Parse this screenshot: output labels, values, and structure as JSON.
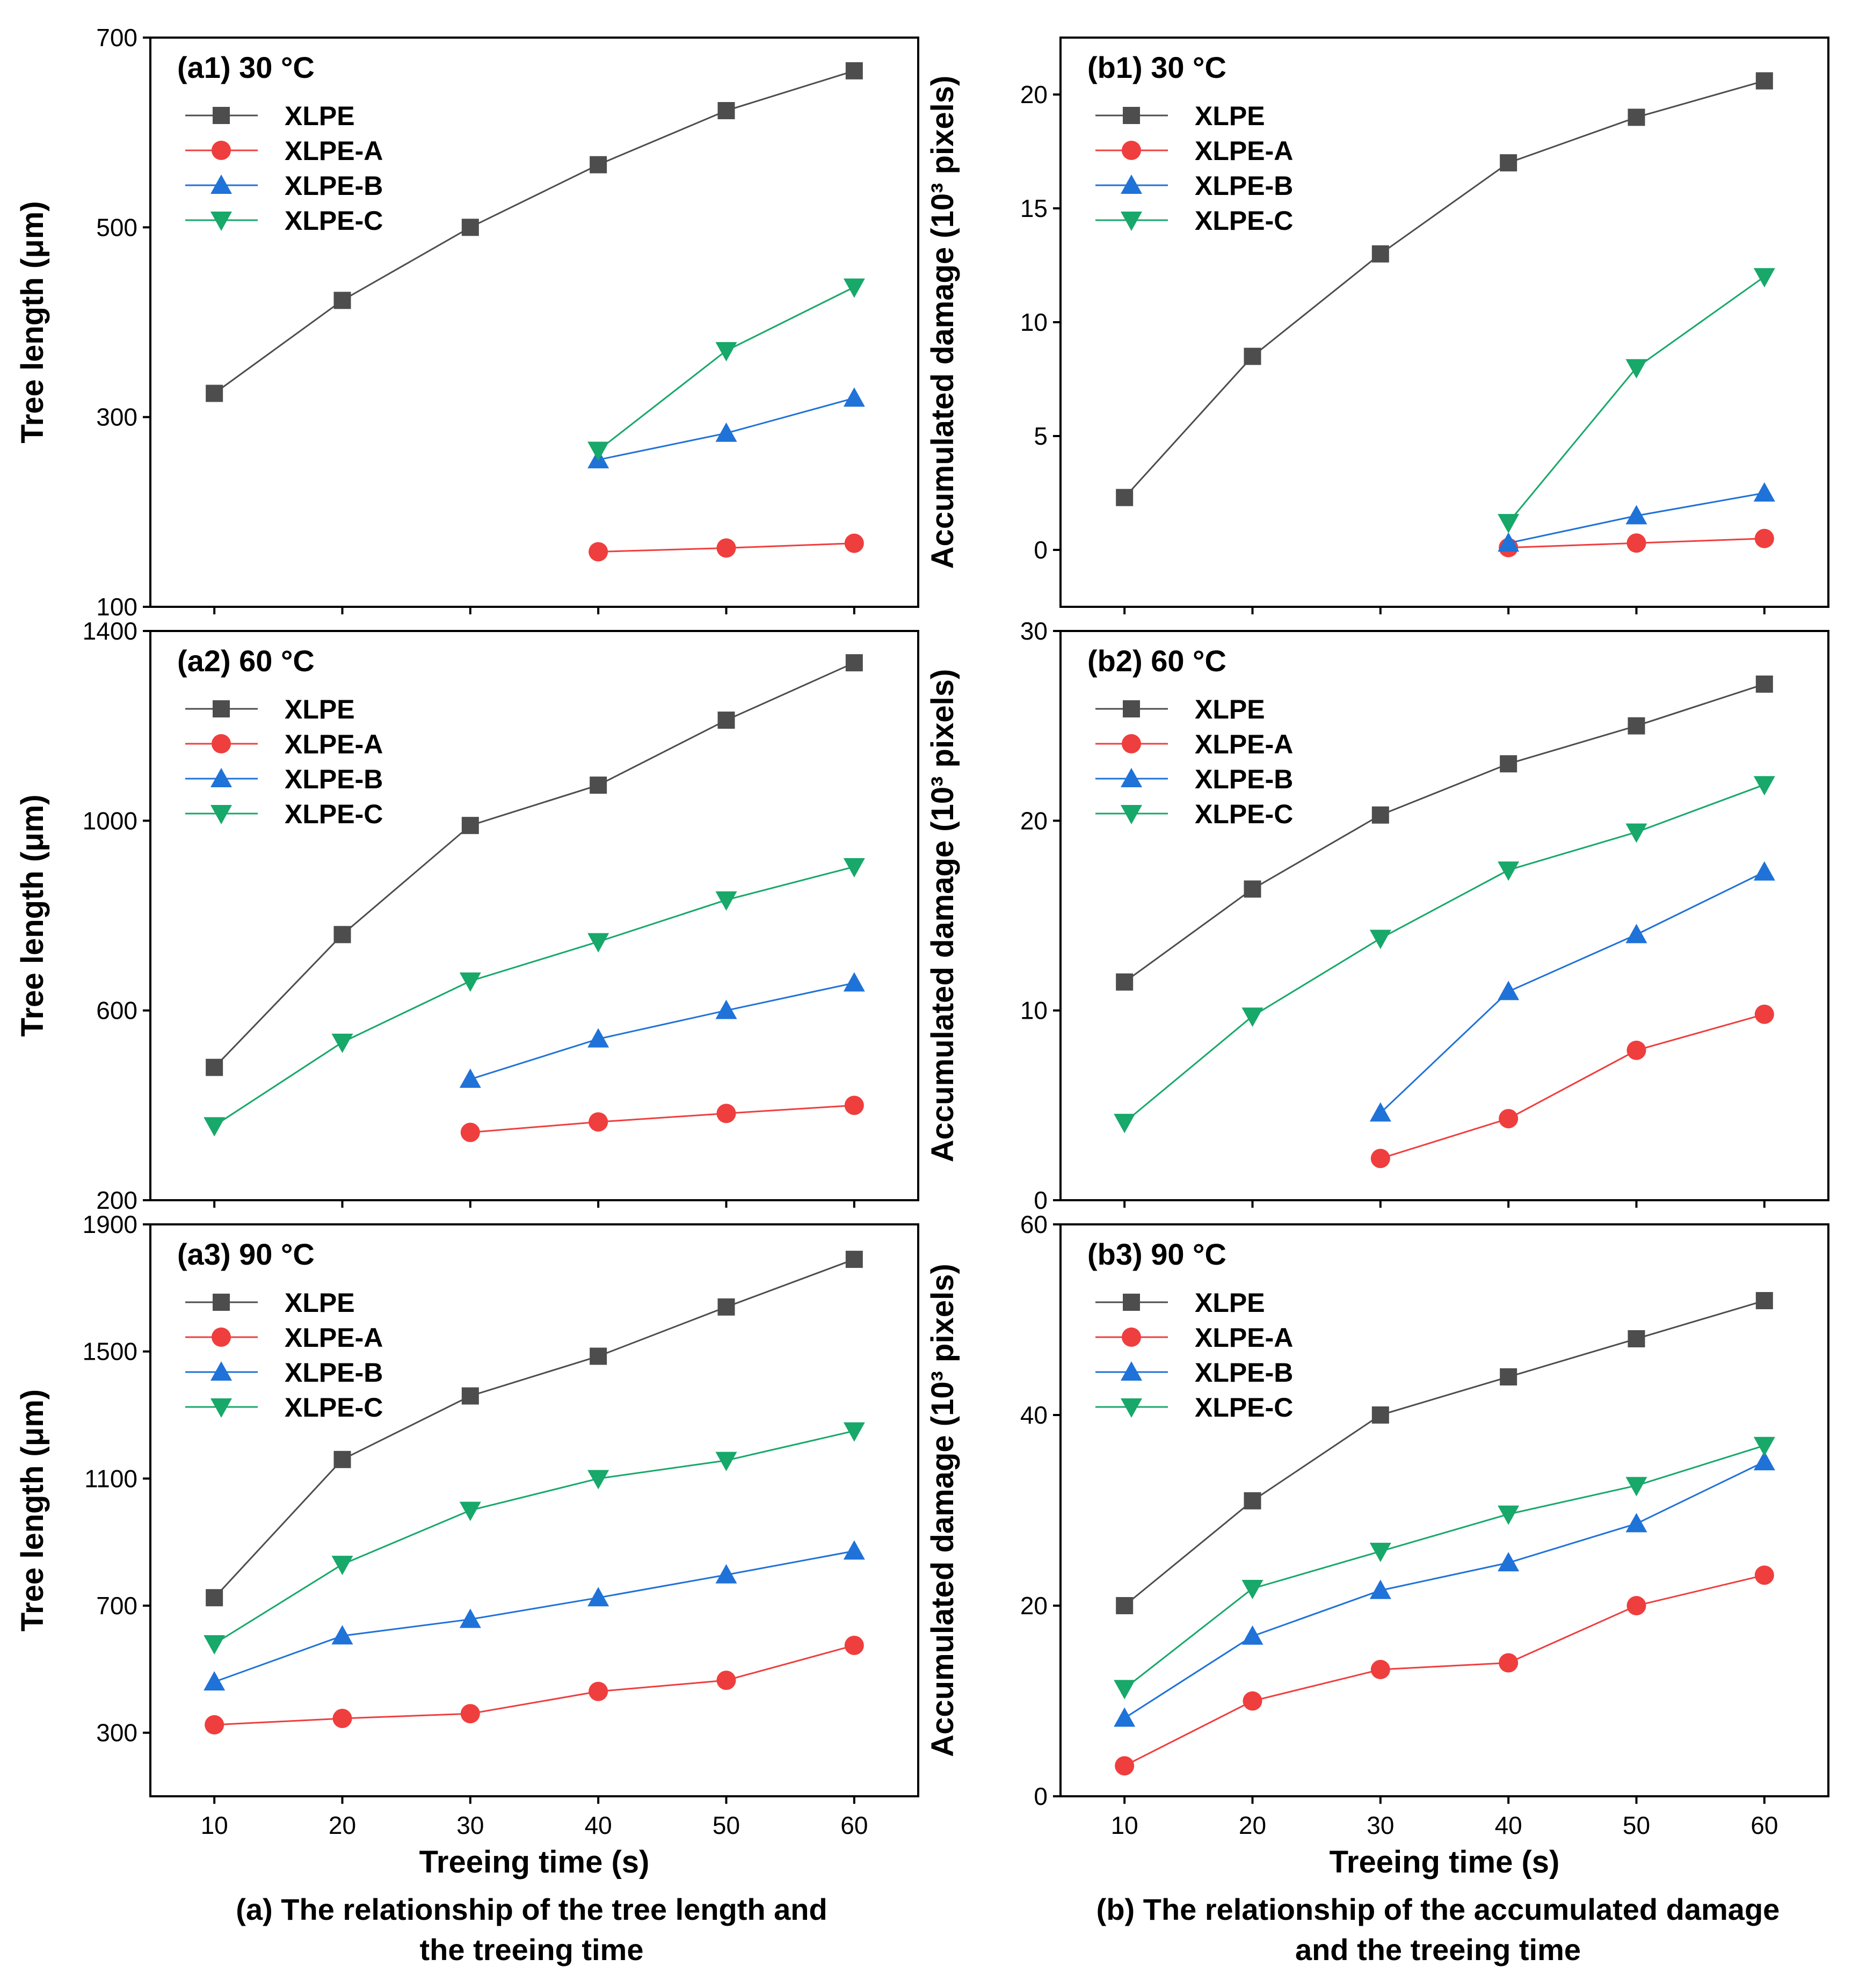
{
  "colors": {
    "XLPE": "#4d4d4d",
    "XLPE-A": "#ef3e3e",
    "XLPE-B": "#1f72d8",
    "XLPE-C": "#17a86a"
  },
  "chart_data": [
    {
      "id": "a1",
      "type": "line",
      "title": "(a1) 30 °C",
      "ylabel": "Tree length (μm)",
      "xlabel": "",
      "ylim": [
        100,
        700
      ],
      "yticks": [
        100,
        300,
        500,
        700
      ],
      "xlim": [
        5,
        65
      ],
      "xticks": [
        10,
        20,
        30,
        40,
        50,
        60
      ],
      "series": [
        {
          "name": "XLPE",
          "marker": "square",
          "x": [
            10,
            20,
            30,
            40,
            50,
            60
          ],
          "values": [
            325,
            423,
            500,
            566,
            623,
            665
          ]
        },
        {
          "name": "XLPE-A",
          "marker": "circle",
          "x": [
            40,
            50,
            60
          ],
          "values": [
            158,
            162,
            167
          ]
        },
        {
          "name": "XLPE-B",
          "marker": "triangle-up",
          "x": [
            40,
            50,
            60
          ],
          "values": [
            255,
            283,
            320
          ]
        },
        {
          "name": "XLPE-C",
          "marker": "triangle-down",
          "x": [
            40,
            50,
            60
          ],
          "values": [
            265,
            370,
            437
          ]
        }
      ]
    },
    {
      "id": "a2",
      "type": "line",
      "title": "(a2) 60 °C",
      "ylabel": "Tree length (μm)",
      "xlabel": "",
      "ylim": [
        200,
        1400
      ],
      "yticks": [
        200,
        600,
        1000,
        1400
      ],
      "xlim": [
        5,
        65
      ],
      "xticks": [
        10,
        20,
        30,
        40,
        50,
        60
      ],
      "series": [
        {
          "name": "XLPE",
          "marker": "square",
          "x": [
            10,
            20,
            30,
            40,
            50,
            60
          ],
          "values": [
            480,
            760,
            990,
            1075,
            1212,
            1333
          ]
        },
        {
          "name": "XLPE-A",
          "marker": "circle",
          "x": [
            30,
            40,
            50,
            60
          ],
          "values": [
            343,
            365,
            383,
            400
          ]
        },
        {
          "name": "XLPE-B",
          "marker": "triangle-up",
          "x": [
            30,
            40,
            50,
            60
          ],
          "values": [
            455,
            540,
            600,
            658
          ]
        },
        {
          "name": "XLPE-C",
          "marker": "triangle-down",
          "x": [
            10,
            20,
            30,
            40,
            50,
            60
          ],
          "values": [
            357,
            533,
            662,
            745,
            833,
            903
          ]
        }
      ]
    },
    {
      "id": "a3",
      "type": "line",
      "title": "(a3) 90 °C",
      "ylabel": "Tree length (μm)",
      "xlabel": "Treeing time (s)",
      "ylim": [
        100,
        1900
      ],
      "yticks": [
        300,
        700,
        1100,
        1500,
        1900
      ],
      "xlim": [
        5,
        65
      ],
      "xticks": [
        10,
        20,
        30,
        40,
        50,
        60
      ],
      "series": [
        {
          "name": "XLPE",
          "marker": "square",
          "x": [
            10,
            20,
            30,
            40,
            50,
            60
          ],
          "values": [
            725,
            1160,
            1360,
            1485,
            1640,
            1790
          ]
        },
        {
          "name": "XLPE-A",
          "marker": "circle",
          "x": [
            10,
            20,
            30,
            40,
            50,
            60
          ],
          "values": [
            325,
            345,
            360,
            430,
            465,
            575
          ]
        },
        {
          "name": "XLPE-B",
          "marker": "triangle-up",
          "x": [
            10,
            20,
            30,
            40,
            50,
            60
          ],
          "values": [
            460,
            605,
            657,
            725,
            797,
            872
          ]
        },
        {
          "name": "XLPE-C",
          "marker": "triangle-down",
          "x": [
            10,
            20,
            30,
            40,
            50,
            60
          ],
          "values": [
            580,
            830,
            1000,
            1100,
            1157,
            1250
          ]
        }
      ]
    },
    {
      "id": "b1",
      "type": "line",
      "title": "(b1) 30 °C",
      "ylabel": "Accumulated damage (10³ pixels)",
      "xlabel": "",
      "ylim": [
        -2.5,
        22.5
      ],
      "yticks": [
        0,
        5,
        10,
        15,
        20
      ],
      "xlim": [
        5,
        65
      ],
      "xticks": [
        10,
        20,
        30,
        40,
        50,
        60
      ],
      "series": [
        {
          "name": "XLPE",
          "marker": "square",
          "x": [
            10,
            20,
            30,
            40,
            50,
            60
          ],
          "values": [
            2.3,
            8.5,
            13.0,
            17.0,
            19.0,
            20.6
          ]
        },
        {
          "name": "XLPE-A",
          "marker": "circle",
          "x": [
            40,
            50,
            60
          ],
          "values": [
            0.1,
            0.3,
            0.5
          ]
        },
        {
          "name": "XLPE-B",
          "marker": "triangle-up",
          "x": [
            40,
            50,
            60
          ],
          "values": [
            0.3,
            1.5,
            2.5
          ]
        },
        {
          "name": "XLPE-C",
          "marker": "triangle-down",
          "x": [
            40,
            50,
            60
          ],
          "values": [
            1.2,
            8.0,
            12.0
          ]
        }
      ]
    },
    {
      "id": "b2",
      "type": "line",
      "title": "(b2) 60 °C",
      "ylabel": "Accumulated damage (10³ pixels)",
      "xlabel": "",
      "ylim": [
        0,
        30
      ],
      "yticks": [
        0,
        10,
        20,
        30
      ],
      "xlim": [
        5,
        65
      ],
      "xticks": [
        10,
        20,
        30,
        40,
        50,
        60
      ],
      "series": [
        {
          "name": "XLPE",
          "marker": "square",
          "x": [
            10,
            20,
            30,
            40,
            50,
            60
          ],
          "values": [
            11.5,
            16.4,
            20.3,
            23.0,
            25.0,
            27.2
          ]
        },
        {
          "name": "XLPE-A",
          "marker": "circle",
          "x": [
            30,
            40,
            50,
            60
          ],
          "values": [
            2.2,
            4.3,
            7.9,
            9.8
          ]
        },
        {
          "name": "XLPE-B",
          "marker": "triangle-up",
          "x": [
            30,
            40,
            50,
            60
          ],
          "values": [
            4.6,
            11.0,
            14.0,
            17.3
          ]
        },
        {
          "name": "XLPE-C",
          "marker": "triangle-down",
          "x": [
            10,
            20,
            30,
            40,
            50,
            60
          ],
          "values": [
            4.1,
            9.7,
            13.8,
            17.4,
            19.4,
            21.9
          ]
        }
      ]
    },
    {
      "id": "b3",
      "type": "line",
      "title": "(b3) 90 °C",
      "ylabel": "Accumulated damage (10³ pixels)",
      "xlabel": "Treeing time (s)",
      "ylim": [
        0,
        60
      ],
      "yticks": [
        0,
        20,
        40,
        60
      ],
      "xlim": [
        5,
        65
      ],
      "xticks": [
        10,
        20,
        30,
        40,
        50,
        60
      ],
      "series": [
        {
          "name": "XLPE",
          "marker": "square",
          "x": [
            10,
            20,
            30,
            40,
            50,
            60
          ],
          "values": [
            20.0,
            31.0,
            40.0,
            44.0,
            48.0,
            52.0
          ]
        },
        {
          "name": "XLPE-A",
          "marker": "circle",
          "x": [
            10,
            20,
            30,
            40,
            50,
            60
          ],
          "values": [
            3.2,
            10.0,
            13.3,
            14.0,
            20.0,
            23.2
          ]
        },
        {
          "name": "XLPE-B",
          "marker": "triangle-up",
          "x": [
            10,
            20,
            30,
            40,
            50,
            60
          ],
          "values": [
            8.2,
            16.8,
            21.6,
            24.5,
            28.6,
            35.1
          ]
        },
        {
          "name": "XLPE-C",
          "marker": "triangle-down",
          "x": [
            10,
            20,
            30,
            40,
            50,
            60
          ],
          "values": [
            11.3,
            21.8,
            25.7,
            29.6,
            32.6,
            36.8
          ]
        }
      ]
    }
  ],
  "captions": {
    "a_line1": "(a) The relationship of the tree length and",
    "a_line2": "the treeing time",
    "b_line1": "(b) The relationship of the accumulated damage",
    "b_line2": "and the treeing time"
  }
}
